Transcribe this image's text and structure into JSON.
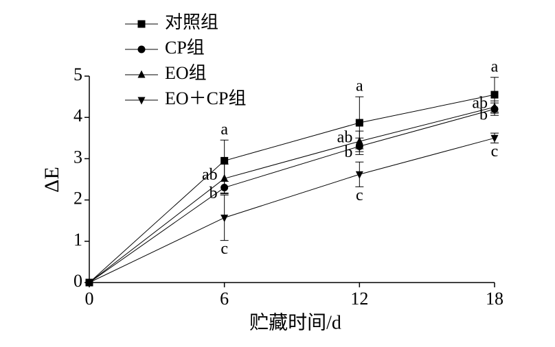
{
  "chart_data": {
    "type": "line",
    "x_label": "贮藏时间/d",
    "y_label": "ΔE",
    "x": [
      0,
      6,
      12,
      18
    ],
    "xlim": [
      0,
      18
    ],
    "xticks": [
      0,
      6,
      12,
      18
    ],
    "ylim": [
      0,
      5
    ],
    "yticks": [
      0,
      1,
      2,
      3,
      4,
      5
    ],
    "legend": "top-left",
    "series": [
      {
        "name": "对照组",
        "color": "#000000",
        "marker": "square",
        "values": [
          0,
          2.95,
          3.87,
          4.55
        ],
        "errors": [
          0,
          0.5,
          0.63,
          0.42
        ],
        "sig_labels": [
          null,
          "a",
          "a",
          "a"
        ],
        "sig_position": "above"
      },
      {
        "name": "CP组",
        "color": "#000000",
        "marker": "circle",
        "values": [
          0,
          2.3,
          3.3,
          4.2
        ],
        "errors": [
          0,
          0.15,
          0.2,
          0.15
        ],
        "sig_labels": [
          null,
          "b",
          "b",
          "b"
        ],
        "sig_position": "left"
      },
      {
        "name": "EO组",
        "color": "#000000",
        "marker": "triangle",
        "values": [
          0,
          2.52,
          3.42,
          4.25
        ],
        "errors": [
          0,
          0.35,
          0.25,
          0.15
        ],
        "sig_labels": [
          null,
          "ab",
          "ab",
          "ab"
        ],
        "sig_position": "left"
      },
      {
        "name": "EO＋CP组",
        "color": "#000000",
        "marker": "triangle-down",
        "values": [
          0,
          1.57,
          2.62,
          3.5
        ],
        "errors": [
          0,
          0.55,
          0.3,
          0.12
        ],
        "sig_labels": [
          null,
          "c",
          "c",
          "c"
        ],
        "sig_position": "below"
      }
    ]
  }
}
